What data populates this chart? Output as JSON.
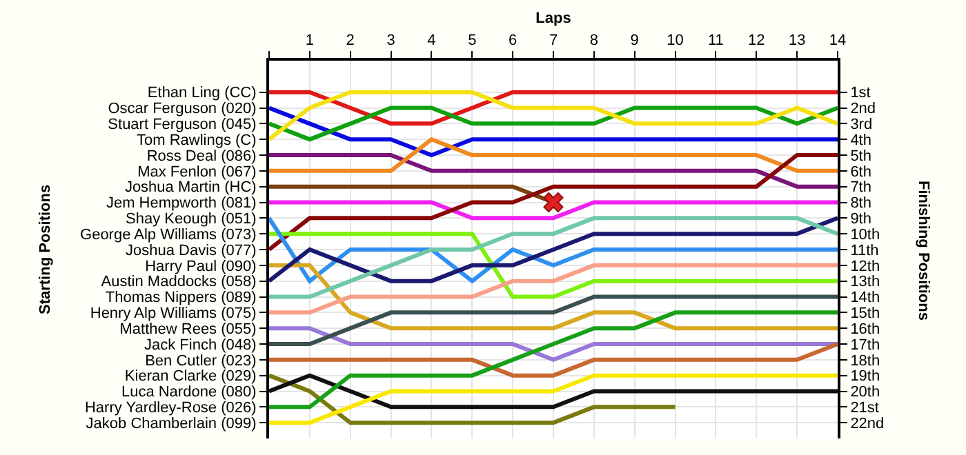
{
  "chart_data": {
    "type": "line",
    "xlabel": "Laps",
    "annotations": [
      "Starting Positions"
    ],
    "y2label": "Finishing Positions",
    "x": [
      0,
      1,
      2,
      3,
      4,
      5,
      6,
      7,
      8,
      9,
      10,
      11,
      12,
      13,
      14
    ],
    "xlim": [
      0,
      14
    ],
    "xticks": [
      {
        "value": 0,
        "label": null
      },
      1,
      2,
      3,
      4,
      5,
      6,
      7,
      8,
      9,
      10,
      11,
      12,
      13,
      14
    ],
    "y_categories": [
      "Ethan Ling (CC)",
      "Oscar Ferguson (020)",
      "Stuart Ferguson (045)",
      "Tom Rawlings (C)",
      "Ross Deal (086)",
      "Max Fenlon (067)",
      "Joshua Martin (HC)",
      "Jem Hempworth (081)",
      "Shay Keough (051)",
      "George Alp Williams (073)",
      "Joshua Davis (077)",
      "Harry Paul (090)",
      "Austin Maddocks (058)",
      "Thomas Nippers (089)",
      "Henry Alp Williams (075)",
      "Matthew Rees (055)",
      "Jack Finch (048)",
      "Ben Cutler (023)",
      "Kieran Clarke (029)",
      "Luca Nardone (080)",
      "Harry Yardley-Rose (026)",
      "Jakob Chamberlain (099)"
    ],
    "y2lim": [
      23,
      -1
    ],
    "y2ticks": [
      {
        "value": 1,
        "label": "1st"
      },
      {
        "value": 2,
        "label": "2nd"
      },
      {
        "value": 3,
        "label": "3rd"
      },
      {
        "value": 4,
        "label": "4th"
      },
      {
        "value": 5,
        "label": "5th"
      },
      {
        "value": 6,
        "label": "6th"
      },
      {
        "value": 7,
        "label": "7th"
      },
      {
        "value": 8,
        "label": "8th"
      },
      {
        "value": 9,
        "label": "9th"
      },
      {
        "value": 10,
        "label": "10th"
      },
      {
        "value": 11,
        "label": "11th"
      },
      {
        "value": 12,
        "label": "12th"
      },
      {
        "value": 13,
        "label": "13th"
      },
      {
        "value": 14,
        "label": "14th"
      },
      {
        "value": 15,
        "label": "15th"
      },
      {
        "value": 16,
        "label": "16th"
      },
      {
        "value": 17,
        "label": "17th"
      },
      {
        "value": 18,
        "label": "18th"
      },
      {
        "value": 19,
        "label": "19th"
      },
      {
        "value": 20,
        "label": "20th"
      },
      {
        "value": 21,
        "label": "21st"
      },
      {
        "value": 22,
        "label": "22nd"
      }
    ],
    "grid": true,
    "marker": "none",
    "line_style": "solid",
    "series": [
      {
        "axis": "y2",
        "color": "#e01818",
        "values": [
          1,
          1,
          2,
          3,
          3,
          2,
          1,
          1,
          1,
          1,
          1,
          1,
          1,
          1,
          1
        ]
      },
      {
        "axis": "y2",
        "color": "#0a0ae0",
        "values": [
          2,
          3,
          4,
          4,
          5,
          4,
          4,
          4,
          4,
          4,
          4,
          4,
          4,
          4,
          4
        ]
      },
      {
        "axis": "y2",
        "color": "#10a010",
        "values": [
          3,
          4,
          3,
          2,
          2,
          3,
          3,
          3,
          3,
          2,
          2,
          2,
          2,
          3,
          2
        ]
      },
      {
        "axis": "y2",
        "color": "#f5e010",
        "values": [
          4,
          2,
          1,
          1,
          1,
          1,
          2,
          2,
          2,
          3,
          3,
          3,
          3,
          2,
          3
        ]
      },
      {
        "axis": "y2",
        "color": "#7a157a",
        "values": [
          5,
          5,
          5,
          5,
          6,
          6,
          6,
          6,
          6,
          6,
          6,
          6,
          6,
          7,
          7
        ]
      },
      {
        "axis": "y2",
        "color": "#f08a20",
        "values": [
          6,
          6,
          6,
          6,
          4,
          5,
          5,
          5,
          5,
          5,
          5,
          5,
          5,
          6,
          6
        ]
      },
      {
        "axis": "y2",
        "color": "#7a4010",
        "values": [
          7,
          7,
          7,
          7,
          7,
          7,
          7,
          8,
          null,
          null,
          null,
          null,
          null,
          null,
          null
        ]
      },
      {
        "axis": "y2",
        "color": "#f020f0",
        "values": [
          8,
          8,
          8,
          8,
          8,
          9,
          9,
          9,
          8,
          8,
          8,
          8,
          8,
          8,
          8
        ]
      },
      {
        "axis": "y2",
        "color": "#880808",
        "values": [
          11,
          9,
          9,
          9,
          9,
          8,
          8,
          7,
          7,
          7,
          7,
          7,
          7,
          5,
          5
        ]
      },
      {
        "axis": "y2",
        "color": "#80f010",
        "values": [
          10,
          10,
          10,
          10,
          10,
          10,
          14,
          14,
          13,
          13,
          13,
          13,
          13,
          13,
          13
        ]
      },
      {
        "axis": "y2",
        "color": "#3090f0",
        "values": [
          9,
          13,
          11,
          11,
          11,
          13,
          11,
          12,
          11,
          11,
          11,
          11,
          11,
          11,
          11
        ]
      },
      {
        "axis": "y2",
        "color": "#d8a820",
        "values": [
          12,
          12,
          15,
          16,
          16,
          16,
          16,
          16,
          15,
          15,
          16,
          16,
          16,
          16,
          16
        ]
      },
      {
        "axis": "y2",
        "color": "#1a1a70",
        "values": [
          13,
          11,
          12,
          13,
          13,
          12,
          12,
          11,
          10,
          10,
          10,
          10,
          10,
          10,
          9
        ]
      },
      {
        "axis": "y2",
        "color": "#70c8a8",
        "values": [
          14,
          14,
          13,
          12,
          11,
          11,
          10,
          10,
          9,
          9,
          9,
          9,
          9,
          9,
          10
        ]
      },
      {
        "axis": "y2",
        "color": "#f8a088",
        "values": [
          15,
          15,
          14,
          14,
          14,
          14,
          13,
          13,
          12,
          12,
          12,
          12,
          12,
          12,
          12
        ]
      },
      {
        "axis": "y2",
        "color": "#9878d8",
        "values": [
          16,
          16,
          17,
          17,
          17,
          17,
          17,
          18,
          17,
          17,
          17,
          17,
          17,
          17,
          17
        ]
      },
      {
        "axis": "y2",
        "color": "#3a5050",
        "values": [
          17,
          17,
          16,
          15,
          15,
          15,
          15,
          15,
          14,
          14,
          14,
          14,
          14,
          14,
          14
        ]
      },
      {
        "axis": "y2",
        "color": "#c86830",
        "values": [
          18,
          18,
          18,
          18,
          18,
          18,
          19,
          19,
          18,
          18,
          18,
          18,
          18,
          18,
          17
        ]
      },
      {
        "axis": "y2",
        "color": "#7a7a10",
        "values": [
          19,
          20,
          22,
          22,
          22,
          22,
          22,
          22,
          21,
          21,
          21,
          null,
          null,
          null,
          null
        ]
      },
      {
        "axis": "y2",
        "color": "#101010",
        "values": [
          20,
          19,
          20,
          21,
          21,
          21,
          21,
          21,
          20,
          20,
          20,
          20,
          20,
          20,
          20
        ]
      },
      {
        "axis": "y2",
        "color": "#18a018",
        "values": [
          21,
          21,
          19,
          19,
          19,
          19,
          18,
          17,
          16,
          16,
          15,
          15,
          15,
          15,
          15
        ]
      },
      {
        "axis": "y2",
        "color": "#f8e800",
        "values": [
          22,
          22,
          21,
          20,
          20,
          20,
          20,
          20,
          19,
          19,
          19,
          19,
          19,
          19,
          19
        ]
      },
      {
        "axis": "y2",
        "type": "scatter",
        "x": [
          7
        ],
        "values": [
          8
        ],
        "color": "#e02020",
        "marker": "cross"
      }
    ]
  }
}
